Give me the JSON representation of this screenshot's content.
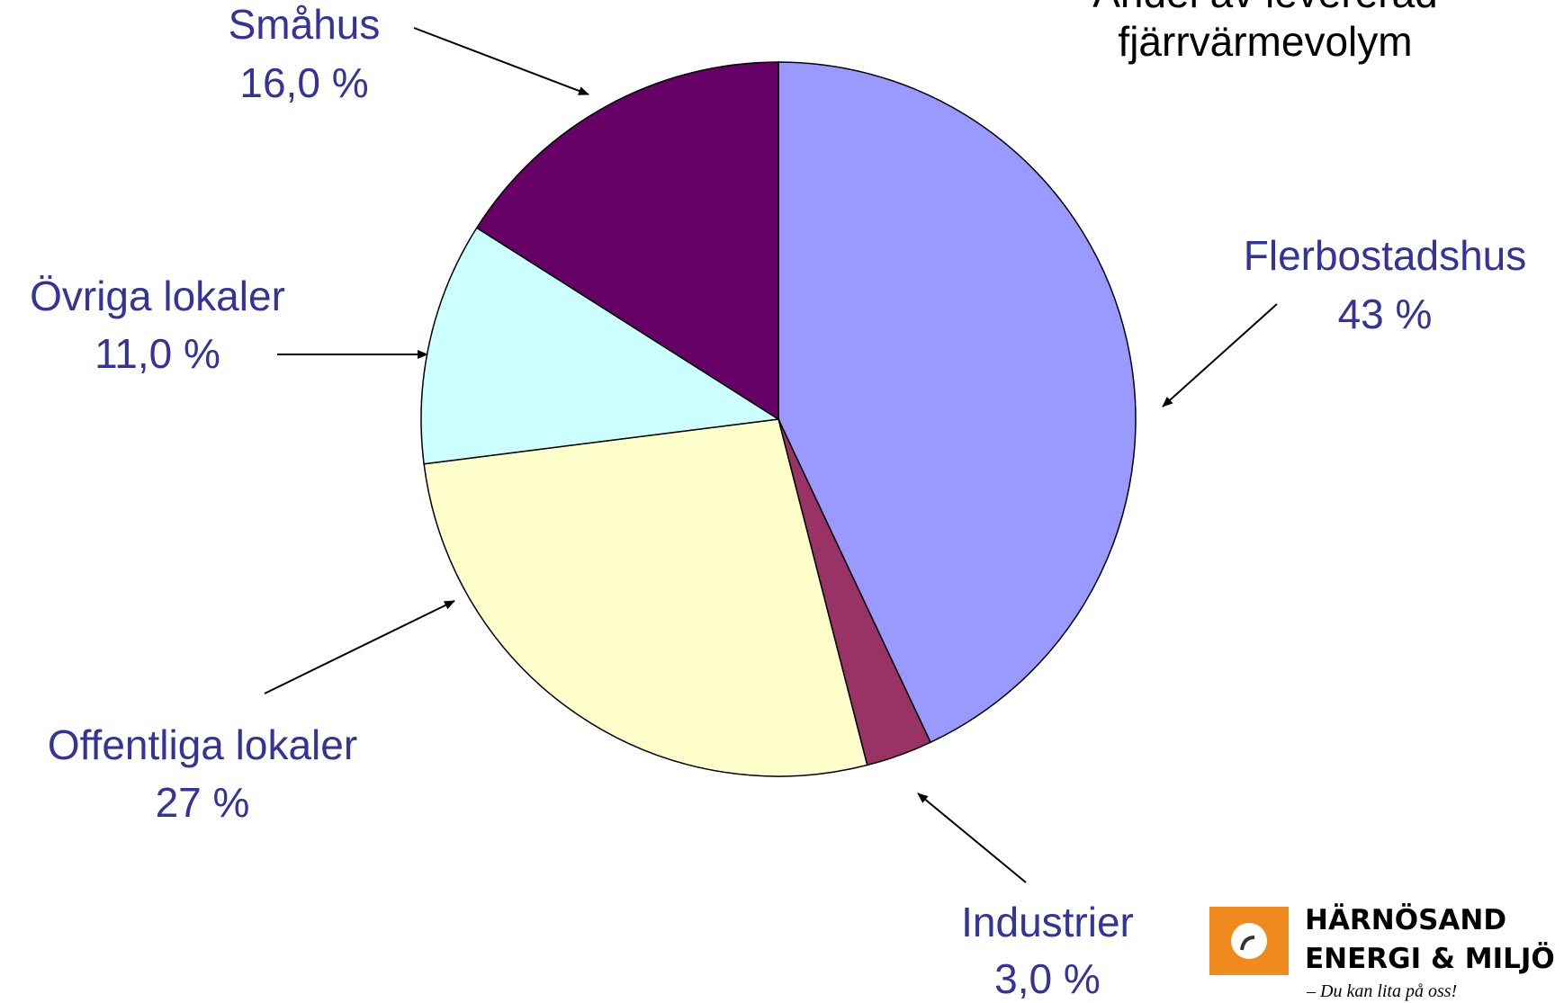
{
  "chart_data": {
    "type": "pie",
    "title": "Andel av levererad fjärrvärmevolym",
    "categories": [
      "Flerbostadshus",
      "Industrier",
      "Offentliga lokaler",
      "Övriga lokaler",
      "Småhus"
    ],
    "values": [
      43,
      3.0,
      27,
      11.0,
      16.0
    ],
    "value_labels": [
      "43 %",
      "3,0 %",
      "27 %",
      "11,0 %",
      "16,0 %"
    ],
    "colors": [
      "#9999ff",
      "#993366",
      "#ffffcc",
      "#ccffff",
      "#660066"
    ]
  },
  "logo": {
    "line1": "HÄRNÖSAND",
    "line2": "ENERGI & MILJÖ",
    "tagline": "– Du kan lita på oss!"
  }
}
